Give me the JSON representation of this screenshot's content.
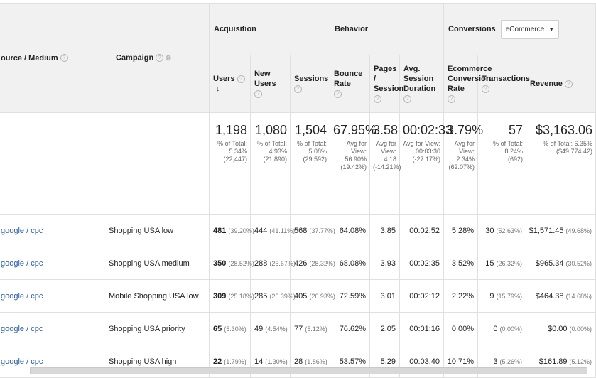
{
  "header": {
    "source_medium": "ource / Medium",
    "campaign": "Campaign",
    "groups": {
      "acquisition": "Acquisition",
      "behavior": "Behavior",
      "conversions": "Conversions"
    },
    "conversion_select": "eCommerce",
    "columns": {
      "users": "Users",
      "new_users": "New Users",
      "sessions": "Sessions",
      "bounce_rate": "Bounce Rate",
      "pages_session": "Pages / Session",
      "avg_duration": "Avg. Session Duration",
      "ecom_rate": "Ecommerce Conversion Rate",
      "transactions": "Transactions",
      "revenue": "Revenue"
    }
  },
  "totals": {
    "users": {
      "value": "1,198",
      "l1": "% of Total:",
      "l2": "5.34%",
      "l3": "(22,447)"
    },
    "new_users": {
      "value": "1,080",
      "l1": "% of Total:",
      "l2": "4.93%",
      "l3": "(21,890)"
    },
    "sessions": {
      "value": "1,504",
      "l1": "% of Total:",
      "l2": "5.08%",
      "l3": "(29,592)"
    },
    "bounce_rate": {
      "value": "67.95%",
      "l1": "Avg for View:",
      "l2": "56.90%",
      "l3": "(19.42%)"
    },
    "pages_session": {
      "value": "3.58",
      "l1": "Avg for",
      "l2": "View:",
      "l3": "4.18",
      "l4": "(-14.21%)"
    },
    "avg_duration": {
      "value": "00:02:33",
      "l1": "Avg for View:",
      "l2": "00:03:30",
      "l3": "(-27.17%)"
    },
    "ecom_rate": {
      "value": "3.79%",
      "l1": "Avg for",
      "l2": "View:",
      "l3": "2.34%",
      "l4": "(62.07%)"
    },
    "transactions": {
      "value": "57",
      "l1": "% of Total: 8.24%",
      "l2": "(692)"
    },
    "revenue": {
      "value": "$3,163.06",
      "l1": "% of Total: 6.35%",
      "l2": "($49,774.42)"
    }
  },
  "rows": [
    {
      "source": "google / cpc",
      "campaign": "Shopping USA low",
      "users": "481",
      "users_pct": "(39.20%)",
      "new_users": "444",
      "new_users_pct": "(41.11%)",
      "sessions": "568",
      "sessions_pct": "(37.77%)",
      "bounce": "64.08%",
      "pages": "3.85",
      "duration": "00:02:52",
      "ecom": "5.28%",
      "trans": "30",
      "trans_pct": "(52.63%)",
      "revenue": "$1,571.45",
      "revenue_pct": "(49.68%)"
    },
    {
      "source": "google / cpc",
      "campaign": "Shopping USA medium",
      "users": "350",
      "users_pct": "(28.52%)",
      "new_users": "288",
      "new_users_pct": "(26.67%)",
      "sessions": "426",
      "sessions_pct": "(28.32%)",
      "bounce": "68.08%",
      "pages": "3.93",
      "duration": "00:02:35",
      "ecom": "3.52%",
      "trans": "15",
      "trans_pct": "(26.32%)",
      "revenue": "$965.34",
      "revenue_pct": "(30.52%)"
    },
    {
      "source": "google / cpc",
      "campaign": "Mobile Shopping USA low",
      "users": "309",
      "users_pct": "(25.18%)",
      "new_users": "285",
      "new_users_pct": "(26.39%)",
      "sessions": "405",
      "sessions_pct": "(26.93%)",
      "bounce": "72.59%",
      "pages": "3.01",
      "duration": "00:02:12",
      "ecom": "2.22%",
      "trans": "9",
      "trans_pct": "(15.79%)",
      "revenue": "$464.38",
      "revenue_pct": "(14.68%)"
    },
    {
      "source": "google / cpc",
      "campaign": "Shopping USA priority",
      "users": "65",
      "users_pct": "(5.30%)",
      "new_users": "49",
      "new_users_pct": "(4.54%)",
      "sessions": "77",
      "sessions_pct": "(5.12%)",
      "bounce": "76.62%",
      "pages": "2.05",
      "duration": "00:01:16",
      "ecom": "0.00%",
      "trans": "0",
      "trans_pct": "(0.00%)",
      "revenue": "$0.00",
      "revenue_pct": "(0.00%)"
    },
    {
      "source": "google / cpc",
      "campaign": "Shopping USA high",
      "users": "22",
      "users_pct": "(1.79%)",
      "new_users": "14",
      "new_users_pct": "(1.30%)",
      "sessions": "28",
      "sessions_pct": "(1.86%)",
      "bounce": "53.57%",
      "pages": "5.29",
      "duration": "00:03:40",
      "ecom": "10.71%",
      "trans": "3",
      "trans_pct": "(5.26%)",
      "revenue": "$161.89",
      "revenue_pct": "(5.12%)"
    }
  ]
}
